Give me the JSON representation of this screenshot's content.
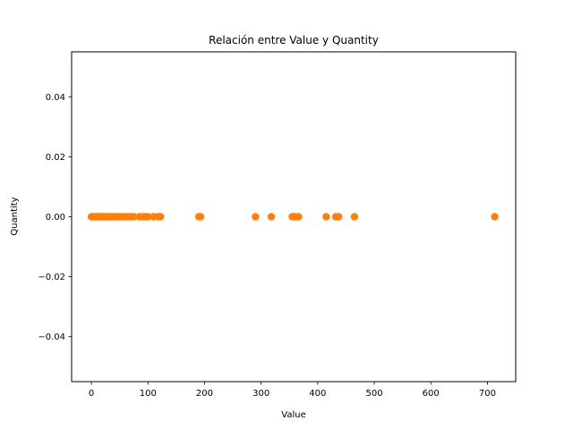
{
  "chart_data": {
    "type": "scatter",
    "title": "Relación entre Value y Quantity",
    "xlabel": "Value",
    "ylabel": "Quantity",
    "xlim": [
      -35,
      750
    ],
    "ylim": [
      -0.055,
      0.055
    ],
    "xticks": [
      0,
      100,
      200,
      300,
      400,
      500,
      600,
      700
    ],
    "xtick_labels": [
      "0",
      "100",
      "200",
      "300",
      "400",
      "500",
      "600",
      "700"
    ],
    "yticks": [
      -0.04,
      -0.02,
      0.0,
      0.02,
      0.04
    ],
    "ytick_labels": [
      "−0.04",
      "−0.02",
      "0.00",
      "0.02",
      "0.04"
    ],
    "grid": false,
    "legend": "none",
    "series": [
      {
        "color": "#ff7f0e",
        "x": [
          0,
          2,
          4,
          6,
          8,
          10,
          12,
          15,
          18,
          20,
          22,
          25,
          28,
          30,
          33,
          36,
          40,
          42,
          45,
          50,
          55,
          60,
          63,
          68,
          72,
          75,
          85,
          90,
          95,
          100,
          110,
          118,
          122,
          190,
          193,
          290,
          318,
          355,
          360,
          366,
          415,
          432,
          437,
          465,
          713
        ],
        "y": [
          0,
          0,
          0,
          0,
          0,
          0,
          0,
          0,
          0,
          0,
          0,
          0,
          0,
          0,
          0,
          0,
          0,
          0,
          0,
          0,
          0,
          0,
          0,
          0,
          0,
          0,
          0,
          0,
          0,
          0,
          0,
          0,
          0,
          0,
          0,
          0,
          0,
          0,
          0,
          0,
          0,
          0,
          0,
          0,
          0
        ]
      }
    ]
  }
}
